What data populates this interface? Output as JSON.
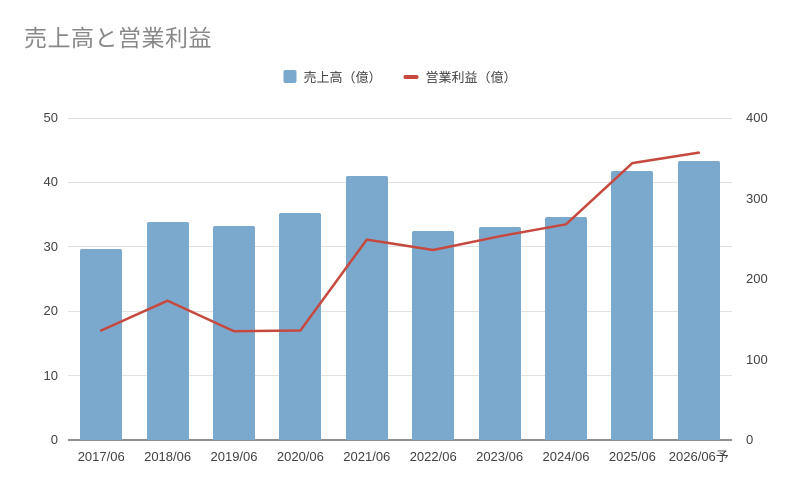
{
  "colors": {
    "bar": "#7BA9CE",
    "line": "#C5493E",
    "grid": "#E2E2E2",
    "axis": "#8F8F8F",
    "title_text": "#888888",
    "tick_text": "#424242"
  },
  "chart_data": {
    "type": "bar",
    "title": "売上高と営業利益",
    "categories": [
      "2017/06",
      "2018/06",
      "2019/06",
      "2020/06",
      "2021/06",
      "2022/06",
      "2023/06",
      "2024/06",
      "2025/06",
      "2026/06予"
    ],
    "series": [
      {
        "name": "売上高（億）",
        "type": "bar",
        "axis": "left",
        "values": [
          29.6,
          33.9,
          33.3,
          35.2,
          41.0,
          32.5,
          33.0,
          34.6,
          41.7,
          43.4
        ]
      },
      {
        "name": "営業利益（億）",
        "type": "line",
        "axis": "right",
        "values": [
          136,
          173,
          135,
          136,
          249,
          236,
          253,
          268,
          344,
          357
        ]
      }
    ],
    "left_axis": {
      "min": 0,
      "max": 50,
      "step": 10
    },
    "right_axis": {
      "min": 0,
      "max": 400,
      "step": 100
    },
    "grid": true,
    "legend_position": "top"
  }
}
